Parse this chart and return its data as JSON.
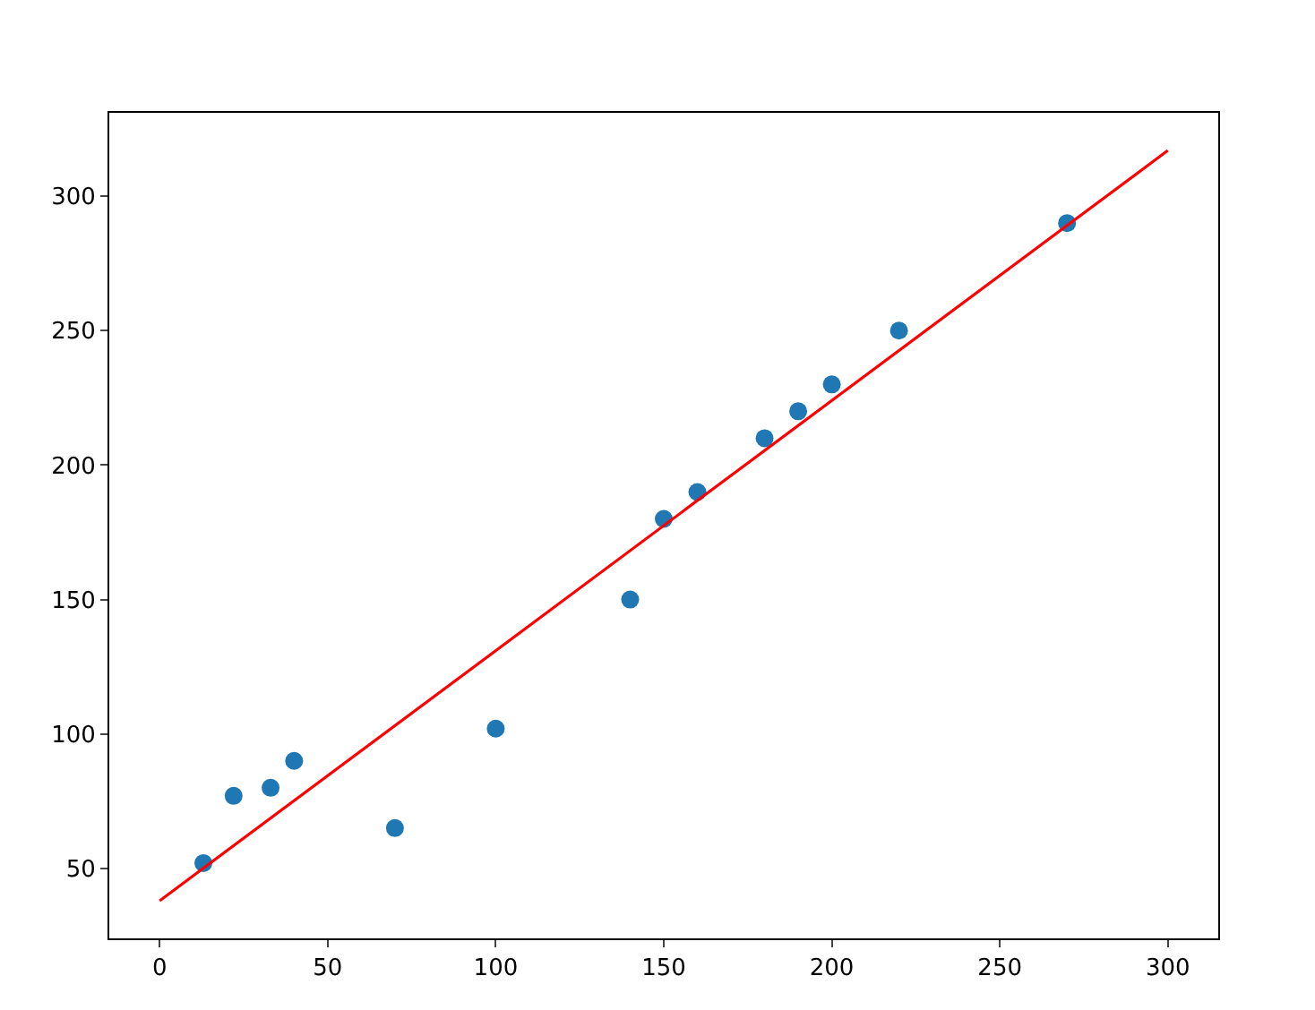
{
  "chart_data": {
    "type": "scatter",
    "grid": false,
    "legend": false,
    "xlim": [
      -15,
      315
    ],
    "ylim": [
      24,
      331
    ],
    "xticks": [
      0,
      50,
      100,
      150,
      200,
      250,
      300
    ],
    "yticks": [
      50,
      100,
      150,
      200,
      250,
      300
    ],
    "series": [
      {
        "marker": "circle",
        "color": "#1f77b4",
        "x": [
          13,
          22,
          33,
          40,
          70,
          100,
          140,
          150,
          160,
          180,
          190,
          200,
          220,
          270
        ],
        "values": [
          52,
          77,
          80,
          90,
          65,
          102,
          150,
          180,
          190,
          210,
          220,
          230,
          250,
          290
        ]
      },
      {
        "type": "line",
        "color": "#ff0000",
        "line_style": "solid",
        "x": [
          0,
          300
        ],
        "values": [
          38,
          317
        ]
      }
    ]
  }
}
